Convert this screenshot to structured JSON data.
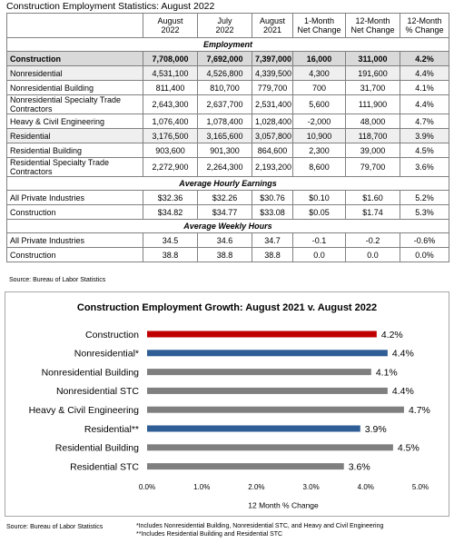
{
  "table": {
    "title": "Construction Employment Statistics: August 2022",
    "header": [
      [
        ""
      ],
      [
        "August",
        "2022"
      ],
      [
        "July",
        "2022"
      ],
      [
        "August",
        "2021"
      ],
      [
        "1-Month",
        "Net Change"
      ],
      [
        "12-Month",
        "Net Change"
      ],
      [
        "12-Month",
        "% Change"
      ]
    ],
    "rows": [
      {
        "section": "Employment"
      },
      {
        "label": "Construction",
        "cells": [
          "7,708,000",
          "7,692,000",
          "7,397,000",
          "16,000",
          "311,000",
          "4.2%"
        ],
        "shade": "dark",
        "bold": true
      },
      {
        "label": "Nonresidential",
        "cells": [
          "4,531,100",
          "4,526,800",
          "4,339,500",
          "4,300",
          "191,600",
          "4.4%"
        ],
        "shade": "light"
      },
      {
        "label": "Nonresidential Building",
        "cells": [
          "811,400",
          "810,700",
          "779,700",
          "700",
          "31,700",
          "4.1%"
        ]
      },
      {
        "label": "Nonresidential Specialty Trade Contractors",
        "cells": [
          "2,643,300",
          "2,637,700",
          "2,531,400",
          "5,600",
          "111,900",
          "4.4%"
        ]
      },
      {
        "label": "Heavy & Civil Engineering",
        "cells": [
          "1,076,400",
          "1,078,400",
          "1,028,400",
          "-2,000",
          "48,000",
          "4.7%"
        ]
      },
      {
        "label": "Residential",
        "cells": [
          "3,176,500",
          "3,165,600",
          "3,057,800",
          "10,900",
          "118,700",
          "3.9%"
        ],
        "shade": "light"
      },
      {
        "label": "Residential Building",
        "cells": [
          "903,600",
          "901,300",
          "864,600",
          "2,300",
          "39,000",
          "4.5%"
        ]
      },
      {
        "label": "Residential Specialty Trade Contractors",
        "cells": [
          "2,272,900",
          "2,264,300",
          "2,193,200",
          "8,600",
          "79,700",
          "3.6%"
        ]
      },
      {
        "section": "Average Hourly Earnings"
      },
      {
        "label": "All Private Industries",
        "cells": [
          "$32.36",
          "$32.26",
          "$30.76",
          "$0.10",
          "$1.60",
          "5.2%"
        ]
      },
      {
        "label": "Construction",
        "cells": [
          "$34.82",
          "$34.77",
          "$33.08",
          "$0.05",
          "$1.74",
          "5.3%"
        ]
      },
      {
        "section": "Average Weekly Hours"
      },
      {
        "label": "All Private Industries",
        "cells": [
          "34.5",
          "34.6",
          "34.7",
          "-0.1",
          "-0.2",
          "-0.6%"
        ]
      },
      {
        "label": "Construction",
        "cells": [
          "38.8",
          "38.8",
          "38.8",
          "0.0",
          "0.0",
          "0.0%"
        ]
      }
    ],
    "source": "Source: Bureau of Labor Statistics"
  },
  "chart_data": {
    "type": "bar",
    "orientation": "horizontal",
    "title": "Construction Employment Growth: August 2021 v. August 2022",
    "x_label": "12 Month % Change",
    "categories": [
      "Construction",
      "Nonresidential*",
      "Nonresidential Building",
      "Nonresidential STC",
      "Heavy & Civil Engineering",
      "Residential**",
      "Residential Building",
      "Residential STC"
    ],
    "values": [
      4.2,
      4.4,
      4.1,
      4.4,
      4.7,
      3.9,
      4.5,
      3.6
    ],
    "value_labels": [
      "4.2%",
      "4.4%",
      "4.1%",
      "4.4%",
      "4.7%",
      "3.9%",
      "4.5%",
      "3.6%"
    ],
    "colors": [
      "#c00000",
      "#2f5d95",
      "#7f7f7f",
      "#7f7f7f",
      "#7f7f7f",
      "#2f5d95",
      "#7f7f7f",
      "#7f7f7f"
    ],
    "xlim": [
      0,
      5
    ],
    "xticks": [
      {
        "value": 0,
        "label": "0.0%"
      },
      {
        "value": 1,
        "label": "1.0%"
      },
      {
        "value": 2,
        "label": "2.0%"
      },
      {
        "value": 3,
        "label": "3.0%"
      },
      {
        "value": 4,
        "label": "4.0%"
      },
      {
        "value": 5,
        "label": "5.0%"
      }
    ],
    "grid": false,
    "source": "Source:  Bureau of Labor Statistics",
    "notes": [
      "*Includes Nonresidential Building, Nonresidential STC, and Heavy and Civil Engineering",
      "**Includes Residential Building and Residential STC"
    ]
  }
}
